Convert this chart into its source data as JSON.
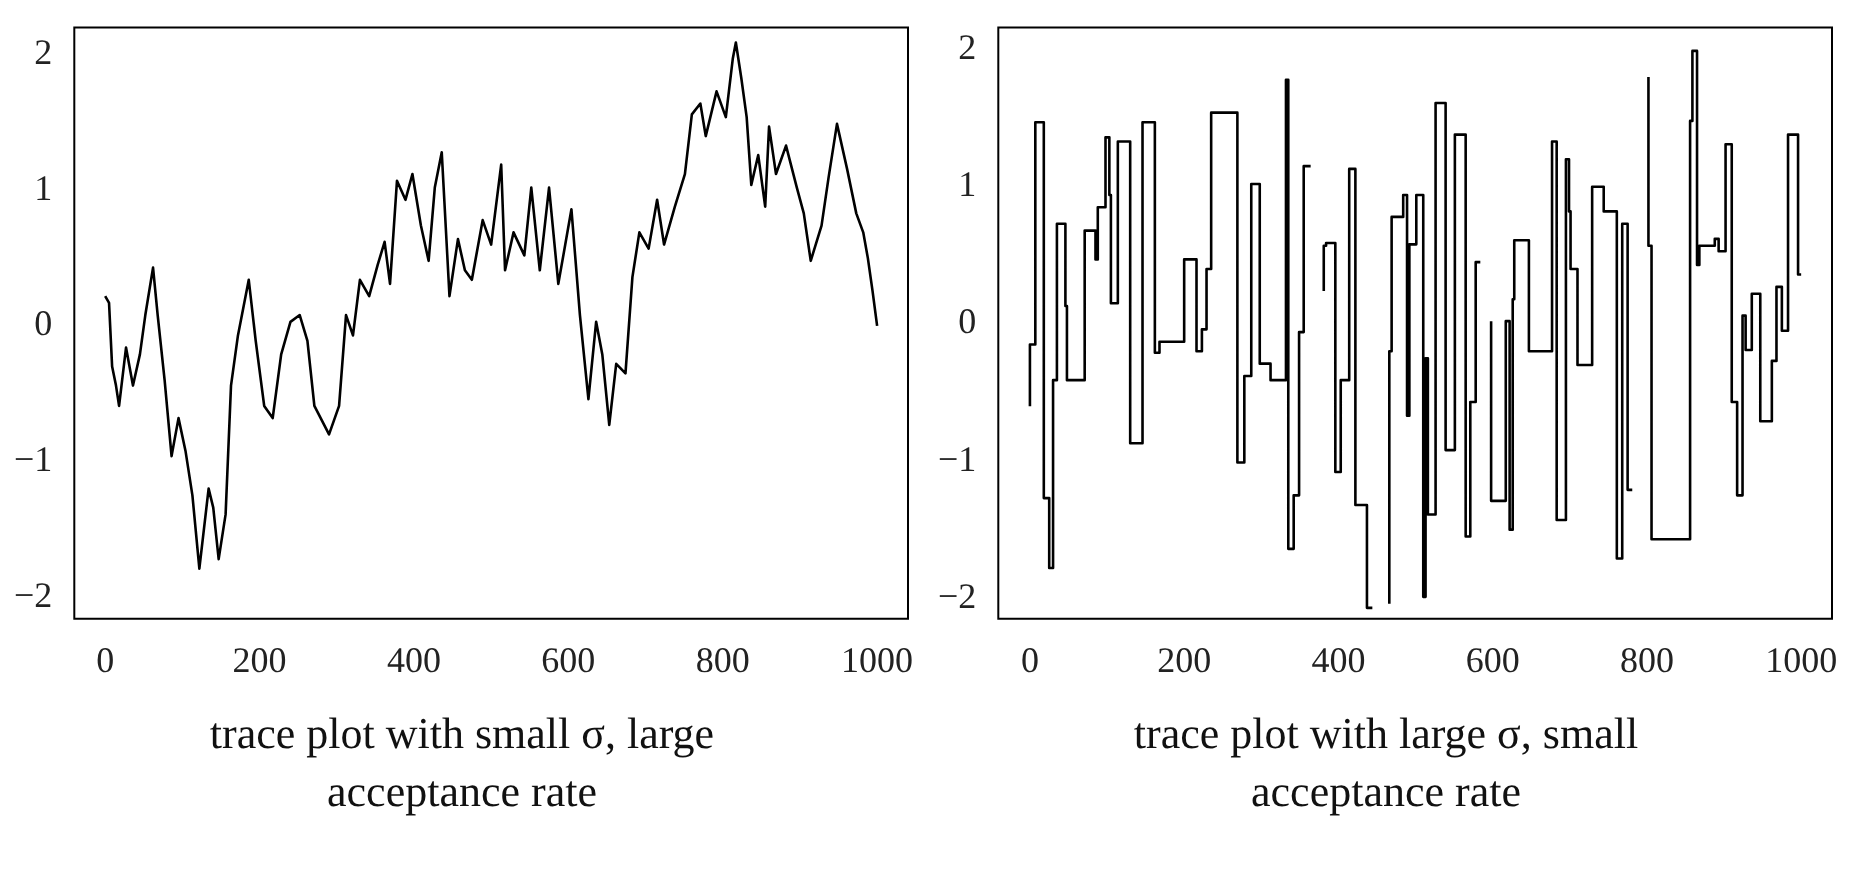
{
  "chart_data": [
    {
      "type": "line",
      "xlabel": "trace plot with small σ, large acceptance rate",
      "color": "#000000",
      "xlim": [
        -40,
        1040
      ],
      "ylim": [
        -2.16,
        2.2
      ],
      "xticks": [
        0,
        200,
        400,
        600,
        800,
        1000
      ],
      "yticks": [
        -2,
        -1,
        0,
        1,
        2
      ],
      "x": [
        0,
        5,
        9,
        14,
        18,
        27,
        36,
        45,
        52,
        62,
        68,
        77,
        86,
        95,
        104,
        113,
        122,
        134,
        140,
        147,
        156,
        163,
        172,
        186,
        195,
        206,
        217,
        228,
        240,
        252,
        262,
        271,
        290,
        303,
        312,
        321,
        330,
        342,
        353,
        362,
        369,
        378,
        389,
        398,
        409,
        419,
        427,
        436,
        446,
        457,
        466,
        475,
        489,
        500,
        513,
        518,
        529,
        543,
        552,
        563,
        575,
        587,
        596,
        604,
        615,
        626,
        636,
        644,
        653,
        662,
        674,
        683,
        692,
        704,
        715,
        724,
        738,
        751,
        760,
        771,
        778,
        792,
        804,
        813,
        817,
        824,
        831,
        837,
        846,
        855,
        860,
        869,
        882,
        896,
        905,
        914,
        928,
        937,
        948,
        961,
        973,
        982,
        988,
        994,
        1000
      ],
      "values": [
        0.22,
        0.17,
        -0.3,
        -0.44,
        -0.59,
        -0.16,
        -0.44,
        -0.21,
        0.08,
        0.43,
        0.08,
        -0.4,
        -0.96,
        -0.68,
        -0.92,
        -1.25,
        -1.79,
        -1.2,
        -1.34,
        -1.72,
        -1.39,
        -0.44,
        -0.07,
        0.34,
        -0.11,
        -0.59,
        -0.68,
        -0.21,
        0.03,
        0.08,
        -0.11,
        -0.59,
        -0.8,
        -0.59,
        0.08,
        -0.07,
        0.34,
        0.22,
        0.45,
        0.62,
        0.31,
        1.07,
        0.93,
        1.12,
        0.74,
        0.48,
        1.02,
        1.28,
        0.22,
        0.64,
        0.41,
        0.34,
        0.78,
        0.6,
        1.19,
        0.41,
        0.69,
        0.52,
        1.02,
        0.41,
        1.02,
        0.31,
        0.6,
        0.86,
        0.08,
        -0.54,
        0.03,
        -0.21,
        -0.73,
        -0.28,
        -0.35,
        0.36,
        0.69,
        0.57,
        0.93,
        0.6,
        0.88,
        1.12,
        1.56,
        1.64,
        1.4,
        1.73,
        1.54,
        1.97,
        2.09,
        1.83,
        1.54,
        1.04,
        1.26,
        0.88,
        1.47,
        1.12,
        1.33,
        1.02,
        0.83,
        0.48,
        0.74,
        1.09,
        1.49,
        1.16,
        0.83,
        0.69,
        0.5,
        0.26,
        0.0
      ]
    },
    {
      "type": "step",
      "xlabel": "trace plot with large σ, small acceptance rate",
      "color": "#000000",
      "xlim": [
        -41,
        1040
      ],
      "ylim": [
        -2.15,
        2.16
      ],
      "xticks": [
        0,
        200,
        400,
        600,
        800,
        1000
      ],
      "yticks": [
        -2,
        -1,
        0,
        1,
        2
      ],
      "x": [
        0,
        7,
        18,
        25,
        30,
        35,
        46,
        48,
        71,
        85,
        88,
        98,
        103,
        105,
        114,
        130,
        146,
        162,
        168,
        200,
        216,
        223,
        229,
        235,
        269,
        278,
        287,
        298,
        312,
        332,
        335,
        342,
        349,
        355,
        364,
        378,
        381,
        384,
        396,
        403,
        414,
        422,
        437,
        444,
        460,
        466,
        469,
        484,
        489,
        492,
        501,
        510,
        513,
        516,
        526,
        539,
        551,
        565,
        571,
        578,
        584,
        592,
        598,
        617,
        622,
        626,
        628,
        647,
        677,
        683,
        695,
        699,
        701,
        710,
        729,
        744,
        761,
        768,
        775,
        781,
        800,
        802,
        806,
        856,
        859,
        865,
        868,
        888,
        893,
        902,
        910,
        917,
        924,
        928,
        936,
        947,
        962,
        968,
        975,
        983,
        996,
        1000
      ],
      "values": [
        -0.6,
        -0.15,
        1.47,
        -1.27,
        -1.78,
        -0.41,
        0.73,
        0.13,
        -0.41,
        0.68,
        0.47,
        0.85,
        1.36,
        0.94,
        0.15,
        1.33,
        -0.87,
        1.47,
        -0.21,
        -0.13,
        0.47,
        -0.2,
        -0.04,
        0.4,
        1.54,
        -1.01,
        -0.38,
        1.02,
        -0.29,
        -0.41,
        1.78,
        -1.64,
        -1.25,
        -0.06,
        1.15,
        null,
        0.24,
        0.57,
        0.59,
        -1.08,
        -0.41,
        1.13,
        -1.32,
        -2.07,
        null,
        -2.04,
        -0.2,
        0.78,
        0.94,
        -0.67,
        0.58,
        0.94,
        -1.99,
        -0.25,
        -1.39,
        1.61,
        -0.92,
        1.38,
        -1.55,
        -0.57,
        0.45,
        null,
        0.02,
        -1.29,
        0.02,
        -1.5,
        0.18,
        0.61,
        -0.2,
        1.33,
        -1.43,
        1.2,
        0.82,
        0.4,
        -0.3,
        1.0,
        0.82,
        -1.71,
        0.73,
        -1.21,
        null,
        1.8,
        0.57,
        -1.57,
        1.48,
        1.99,
        0.43,
        0.57,
        0.62,
        0.53,
        1.31,
        -0.57,
        -1.25,
        0.06,
        -0.19,
        0.22,
        -0.71,
        -0.27,
        0.27,
        -0.05,
        1.38,
        0.36
      ]
    }
  ]
}
